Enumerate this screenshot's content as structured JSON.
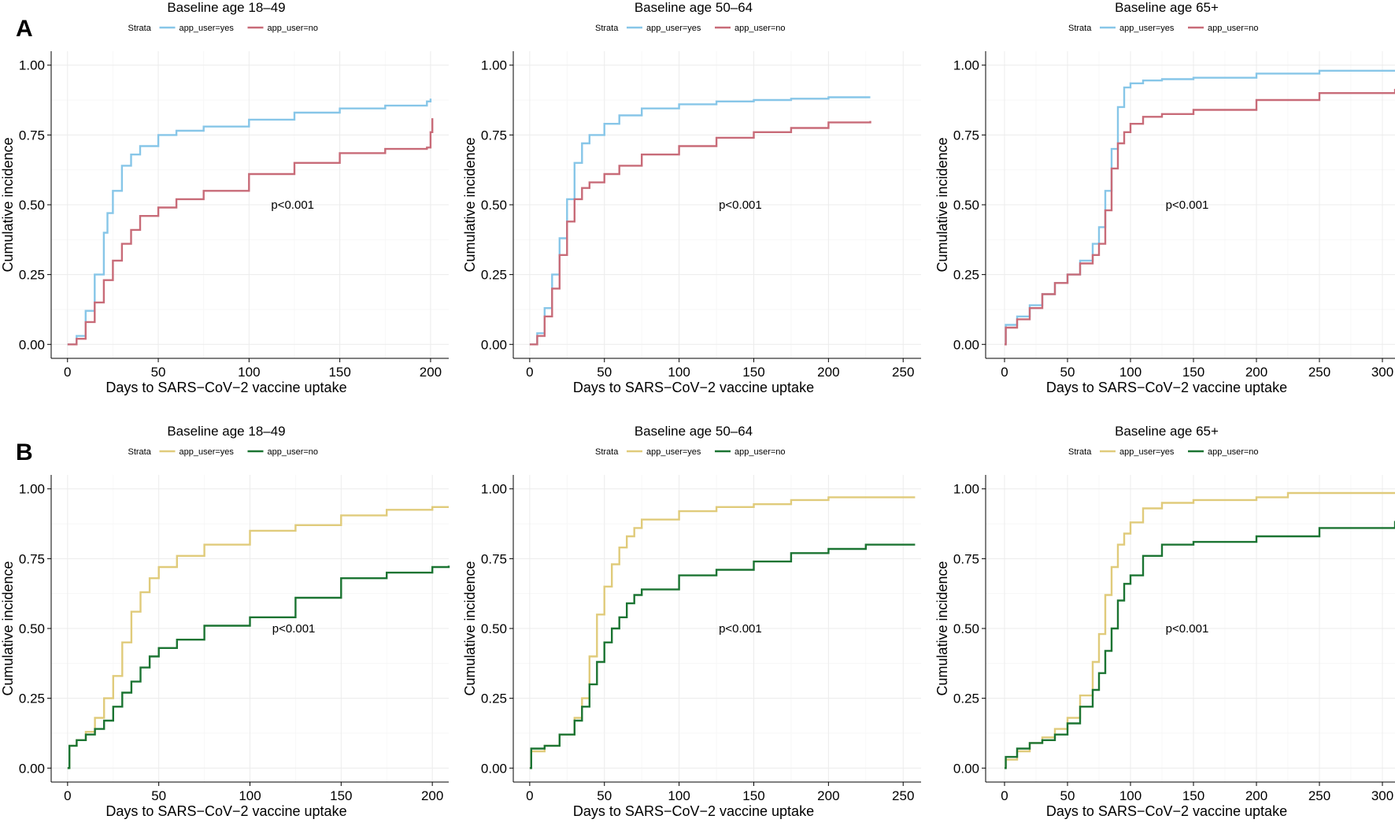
{
  "panels": [
    {
      "letter": "A"
    },
    {
      "letter": "B"
    }
  ],
  "chart_data": [
    {
      "type": "line",
      "step": true,
      "panel": "A",
      "title": "Baseline age 18–49",
      "xlabel": "Days to SARS−CoV−2 vaccine uptake",
      "ylabel": "Cumulative incidence",
      "xlim": [
        -9,
        210
      ],
      "ylim": [
        -0.05,
        1.05
      ],
      "xticks": [
        0,
        50,
        100,
        150,
        200
      ],
      "yticks": [
        "0.00",
        "0.25",
        "0.50",
        "0.75",
        "1.00"
      ],
      "legend_title": "Strata",
      "legend_position": "top",
      "annotation": {
        "text": "p<0.001",
        "x": 124,
        "y": 0.5
      },
      "grid": true,
      "series": [
        {
          "name": "app_user=yes",
          "color": "#87c6e8",
          "x": [
            0,
            5,
            10,
            15,
            20,
            22,
            25,
            30,
            35,
            40,
            50,
            60,
            75,
            100,
            125,
            150,
            175,
            198,
            200
          ],
          "y": [
            0,
            0.03,
            0.12,
            0.25,
            0.4,
            0.47,
            0.55,
            0.64,
            0.68,
            0.71,
            0.75,
            0.765,
            0.78,
            0.805,
            0.83,
            0.845,
            0.855,
            0.87,
            0.88
          ]
        },
        {
          "name": "app_user=no",
          "color": "#c86b78",
          "x": [
            0,
            5,
            10,
            15,
            20,
            25,
            30,
            35,
            40,
            50,
            60,
            75,
            100,
            125,
            150,
            175,
            198,
            200,
            201
          ],
          "y": [
            0,
            0.02,
            0.08,
            0.15,
            0.23,
            0.3,
            0.36,
            0.41,
            0.46,
            0.49,
            0.52,
            0.55,
            0.61,
            0.65,
            0.685,
            0.7,
            0.705,
            0.76,
            0.81
          ]
        }
      ]
    },
    {
      "type": "line",
      "step": true,
      "panel": "A",
      "title": "Baseline age 50–64",
      "xlabel": "Days to SARS−CoV−2 vaccine uptake",
      "ylabel": "Cumulative incidence",
      "xlim": [
        -11,
        262
      ],
      "ylim": [
        -0.05,
        1.05
      ],
      "xticks": [
        0,
        50,
        100,
        150,
        200,
        250
      ],
      "yticks": [
        "0.00",
        "0.25",
        "0.50",
        "0.75",
        "1.00"
      ],
      "legend_title": "Strata",
      "legend_position": "top",
      "annotation": {
        "text": "p<0.001",
        "x": 141,
        "y": 0.5
      },
      "grid": true,
      "series": [
        {
          "name": "app_user=yes",
          "color": "#87c6e8",
          "x": [
            0,
            5,
            10,
            15,
            20,
            25,
            30,
            35,
            40,
            50,
            60,
            75,
            100,
            125,
            150,
            175,
            200,
            228
          ],
          "y": [
            0,
            0.04,
            0.13,
            0.25,
            0.38,
            0.52,
            0.65,
            0.72,
            0.75,
            0.79,
            0.82,
            0.845,
            0.86,
            0.87,
            0.875,
            0.88,
            0.885,
            0.885
          ]
        },
        {
          "name": "app_user=no",
          "color": "#c86b78",
          "x": [
            0,
            5,
            10,
            15,
            20,
            25,
            30,
            35,
            40,
            50,
            60,
            75,
            100,
            125,
            150,
            175,
            200,
            228
          ],
          "y": [
            0,
            0.03,
            0.1,
            0.2,
            0.32,
            0.44,
            0.52,
            0.56,
            0.58,
            0.61,
            0.64,
            0.68,
            0.71,
            0.74,
            0.76,
            0.775,
            0.795,
            0.8
          ]
        }
      ]
    },
    {
      "type": "line",
      "step": true,
      "panel": "A",
      "title": "Baseline age 65+",
      "xlabel": "Days to SARS−CoV−2 vaccine uptake",
      "ylabel": "Cumulative incidence",
      "xlim": [
        -15,
        310
      ],
      "ylim": [
        -0.05,
        1.05
      ],
      "xticks": [
        0,
        50,
        100,
        150,
        200,
        250,
        300
      ],
      "yticks": [
        "0.00",
        "0.25",
        "0.50",
        "0.75",
        "1.00"
      ],
      "legend_title": "Strata",
      "legend_position": "top",
      "annotation": {
        "text": "p<0.001",
        "x": 145,
        "y": 0.5
      },
      "grid": true,
      "series": [
        {
          "name": "app_user=yes",
          "color": "#87c6e8",
          "x": [
            0,
            1,
            10,
            20,
            30,
            40,
            50,
            60,
            70,
            75,
            80,
            85,
            90,
            95,
            100,
            110,
            125,
            150,
            200,
            250,
            310
          ],
          "y": [
            0,
            0.07,
            0.1,
            0.14,
            0.18,
            0.22,
            0.25,
            0.3,
            0.36,
            0.42,
            0.55,
            0.7,
            0.85,
            0.92,
            0.935,
            0.945,
            0.95,
            0.955,
            0.97,
            0.98,
            0.98
          ]
        },
        {
          "name": "app_user=no",
          "color": "#c86b78",
          "x": [
            0,
            1,
            10,
            20,
            30,
            40,
            50,
            60,
            70,
            75,
            80,
            85,
            90,
            95,
            100,
            110,
            125,
            150,
            200,
            250,
            310
          ],
          "y": [
            0,
            0.06,
            0.09,
            0.13,
            0.18,
            0.22,
            0.25,
            0.29,
            0.32,
            0.36,
            0.48,
            0.63,
            0.72,
            0.76,
            0.79,
            0.815,
            0.825,
            0.84,
            0.875,
            0.9,
            0.915
          ]
        }
      ]
    },
    {
      "type": "line",
      "step": true,
      "panel": "B",
      "title": "Baseline age 18–49",
      "xlabel": "Days to SARS−CoV−2 vaccine uptake",
      "ylabel": "Cumulative incidence",
      "xlim": [
        -9,
        209
      ],
      "ylim": [
        -0.05,
        1.05
      ],
      "xticks": [
        0,
        50,
        100,
        150,
        200
      ],
      "yticks": [
        "0.00",
        "0.25",
        "0.50",
        "0.75",
        "1.00"
      ],
      "legend_title": "Strata",
      "legend_position": "top",
      "annotation": {
        "text": "p<0.001",
        "x": 124,
        "y": 0.5
      },
      "grid": true,
      "series": [
        {
          "name": "app_user=yes",
          "color": "#e0cb7b",
          "x": [
            0,
            1,
            5,
            10,
            15,
            20,
            25,
            30,
            35,
            40,
            45,
            50,
            60,
            75,
            100,
            125,
            150,
            175,
            200,
            209
          ],
          "y": [
            0,
            0.08,
            0.1,
            0.13,
            0.18,
            0.25,
            0.33,
            0.45,
            0.56,
            0.63,
            0.68,
            0.72,
            0.76,
            0.8,
            0.85,
            0.87,
            0.905,
            0.925,
            0.935,
            0.935
          ]
        },
        {
          "name": "app_user=no",
          "color": "#1b7432",
          "x": [
            0,
            1,
            5,
            10,
            15,
            20,
            25,
            30,
            35,
            40,
            45,
            50,
            60,
            75,
            100,
            125,
            150,
            175,
            200,
            209
          ],
          "y": [
            0,
            0.08,
            0.1,
            0.12,
            0.14,
            0.17,
            0.22,
            0.27,
            0.31,
            0.36,
            0.4,
            0.43,
            0.46,
            0.51,
            0.54,
            0.61,
            0.68,
            0.7,
            0.72,
            0.725
          ]
        }
      ]
    },
    {
      "type": "line",
      "step": true,
      "panel": "B",
      "title": "Baseline age 50–64",
      "xlabel": "Days to SARS−CoV−2 vaccine uptake",
      "ylabel": "Cumulative incidence",
      "xlim": [
        -11,
        262
      ],
      "ylim": [
        -0.05,
        1.05
      ],
      "xticks": [
        0,
        50,
        100,
        150,
        200,
        250
      ],
      "yticks": [
        "0.00",
        "0.25",
        "0.50",
        "0.75",
        "1.00"
      ],
      "legend_title": "Strata",
      "legend_position": "top",
      "annotation": {
        "text": "p<0.001",
        "x": 141,
        "y": 0.5
      },
      "grid": true,
      "series": [
        {
          "name": "app_user=yes",
          "color": "#e0cb7b",
          "x": [
            0,
            1,
            10,
            20,
            30,
            35,
            40,
            45,
            50,
            55,
            60,
            65,
            70,
            75,
            100,
            125,
            150,
            175,
            200,
            225,
            258
          ],
          "y": [
            0,
            0.06,
            0.08,
            0.12,
            0.18,
            0.25,
            0.4,
            0.55,
            0.65,
            0.73,
            0.79,
            0.83,
            0.86,
            0.89,
            0.92,
            0.935,
            0.945,
            0.96,
            0.97,
            0.97,
            0.97
          ]
        },
        {
          "name": "app_user=no",
          "color": "#1b7432",
          "x": [
            0,
            1,
            10,
            20,
            30,
            35,
            40,
            45,
            50,
            55,
            60,
            65,
            70,
            75,
            100,
            125,
            150,
            175,
            200,
            225,
            258
          ],
          "y": [
            0,
            0.07,
            0.08,
            0.12,
            0.17,
            0.22,
            0.3,
            0.38,
            0.45,
            0.5,
            0.54,
            0.59,
            0.62,
            0.64,
            0.69,
            0.71,
            0.74,
            0.77,
            0.785,
            0.8,
            0.8
          ]
        }
      ]
    },
    {
      "type": "line",
      "step": true,
      "panel": "B",
      "title": "Baseline age 65+",
      "xlabel": "Days to SARS−CoV−2 vaccine uptake",
      "ylabel": "Cumulative incidence",
      "xlim": [
        -15,
        310
      ],
      "ylim": [
        -0.05,
        1.05
      ],
      "xticks": [
        0,
        50,
        100,
        150,
        200,
        250,
        300
      ],
      "yticks": [
        "0.00",
        "0.25",
        "0.50",
        "0.75",
        "1.00"
      ],
      "legend_title": "Strata",
      "legend_position": "top",
      "annotation": {
        "text": "p<0.001",
        "x": 145,
        "y": 0.5
      },
      "grid": true,
      "series": [
        {
          "name": "app_user=yes",
          "color": "#e0cb7b",
          "x": [
            0,
            1,
            10,
            20,
            30,
            40,
            50,
            60,
            70,
            75,
            80,
            85,
            90,
            95,
            100,
            110,
            125,
            150,
            200,
            225,
            310
          ],
          "y": [
            0,
            0.03,
            0.06,
            0.09,
            0.11,
            0.14,
            0.18,
            0.26,
            0.38,
            0.48,
            0.62,
            0.72,
            0.8,
            0.84,
            0.88,
            0.93,
            0.95,
            0.96,
            0.97,
            0.985,
            0.985
          ]
        },
        {
          "name": "app_user=no",
          "color": "#1b7432",
          "x": [
            0,
            1,
            10,
            20,
            30,
            40,
            50,
            60,
            70,
            75,
            80,
            85,
            90,
            95,
            100,
            110,
            125,
            150,
            200,
            250,
            310
          ],
          "y": [
            0,
            0.04,
            0.07,
            0.09,
            0.1,
            0.12,
            0.16,
            0.22,
            0.28,
            0.34,
            0.42,
            0.5,
            0.6,
            0.66,
            0.69,
            0.76,
            0.8,
            0.81,
            0.83,
            0.86,
            0.885
          ]
        }
      ]
    }
  ]
}
